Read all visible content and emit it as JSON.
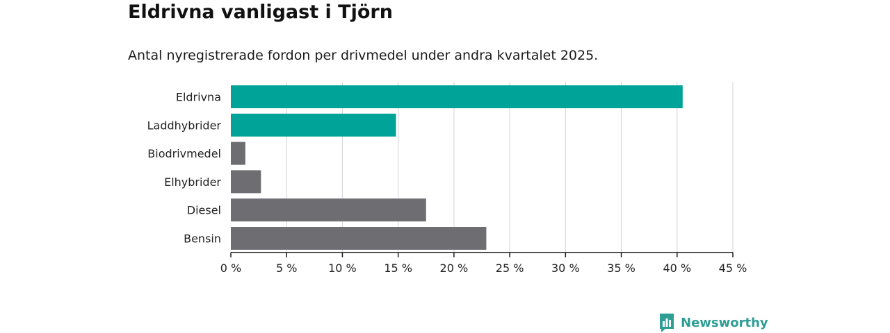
{
  "header": {
    "title": "Eldrivna vanligast i Tjörn",
    "subtitle": "Antal nyregistrerade fordon per drivmedel under andra kvartalet 2025."
  },
  "brand": {
    "name": "Newsworthy",
    "icon": "newsworthy-logo-icon",
    "color": "#2e9e94"
  },
  "chart_data": {
    "type": "bar",
    "orientation": "horizontal",
    "categories": [
      "Eldrivna",
      "Laddhybrider",
      "Biodrivmedel",
      "Elhybrider",
      "Diesel",
      "Bensin"
    ],
    "values": [
      40.5,
      14.8,
      1.3,
      2.7,
      17.5,
      22.9
    ],
    "highlighted": [
      true,
      true,
      false,
      false,
      false,
      false
    ],
    "colors": {
      "highlight": "#00a398",
      "default": "#6e6d72",
      "grid": "#d9d9d9",
      "axis": "#1a1a1a"
    },
    "x_ticks": [
      0,
      5,
      10,
      15,
      20,
      25,
      30,
      35,
      40,
      45
    ],
    "x_tick_labels": [
      "0 %",
      "5 %",
      "10 %",
      "15 %",
      "20 %",
      "25 %",
      "30 %",
      "35 %",
      "40 %",
      "45 %"
    ],
    "xlim": [
      0,
      45
    ],
    "grid": true,
    "legend": "none"
  }
}
